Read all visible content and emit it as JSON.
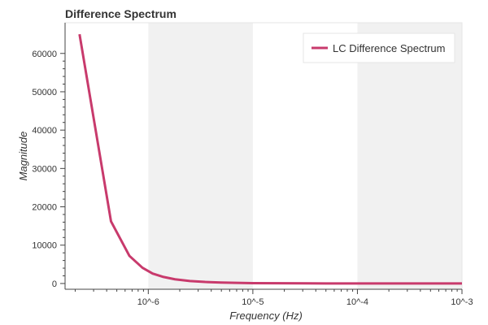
{
  "chart_data": {
    "type": "line",
    "title": "Difference Spectrum",
    "xlabel": "Frequency (Hz)",
    "ylabel": "Magnitude",
    "x_scale": "log",
    "xlim": [
      1.6e-07,
      0.001
    ],
    "ylim": [
      -1500,
      68000
    ],
    "x_ticks": [
      1e-06,
      1e-05,
      0.0001,
      0.001
    ],
    "x_tick_labels": [
      "10^-6",
      "10^-5",
      "10^-4",
      "10^-3"
    ],
    "y_ticks": [
      0,
      10000,
      20000,
      30000,
      40000,
      50000,
      60000
    ],
    "y_tick_labels": [
      "0",
      "10000",
      "20000",
      "30000",
      "40000",
      "50000",
      "60000"
    ],
    "shaded_bands": [
      [
        1e-06,
        1e-05
      ],
      [
        0.0001,
        0.001
      ]
    ],
    "legend_position": "top-right",
    "series": [
      {
        "name": "LC Difference Spectrum",
        "color": "#c83a6c",
        "x": [
          2.2e-07,
          4.4e-07,
          6.6e-07,
          8.8e-07,
          1.1e-06,
          1.4e-06,
          1.8e-06,
          2.5e-06,
          3.5e-06,
          5e-06,
          7e-06,
          1e-05,
          2e-05,
          5e-05,
          0.0001,
          0.0002,
          0.0005,
          0.001
        ],
        "y": [
          65000,
          16200,
          7200,
          4100,
          2600,
          1700,
          1100,
          650,
          400,
          250,
          160,
          100,
          50,
          20,
          10,
          5,
          2,
          1
        ]
      }
    ]
  }
}
